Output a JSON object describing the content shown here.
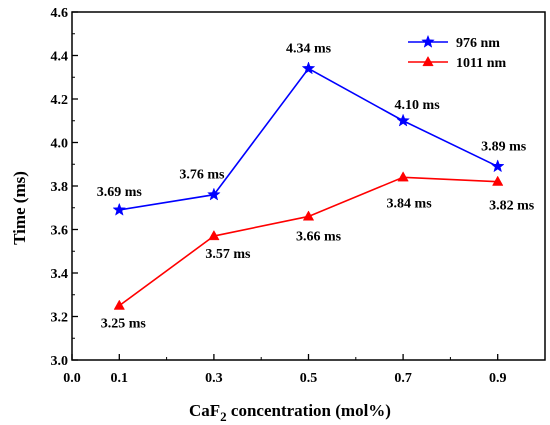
{
  "chart_data": {
    "type": "line",
    "xlabel_main": "CaF",
    "xlabel_sub": "2",
    "xlabel_rest": " concentration (mol%)",
    "ylabel": "Time (ms)",
    "xlim": [
      0.0,
      1.0
    ],
    "ylim": [
      3.0,
      4.6
    ],
    "xticks": [
      "0.0",
      "0.1",
      "0.3",
      "0.5",
      "0.7",
      "0.9"
    ],
    "xtick_values": [
      0.0,
      0.1,
      0.3,
      0.5,
      0.7,
      0.9
    ],
    "yticks": [
      "3.0",
      "3.2",
      "3.4",
      "3.6",
      "3.8",
      "4.0",
      "4.2",
      "4.4",
      "4.6"
    ],
    "ytick_values": [
      3.0,
      3.2,
      3.4,
      3.6,
      3.8,
      4.0,
      4.2,
      4.4,
      4.6
    ],
    "legend_position": "top-right",
    "grid": false,
    "x": [
      0.1,
      0.3,
      0.5,
      0.7,
      0.9
    ],
    "series": [
      {
        "name": "976 nm",
        "color": "#0000ff",
        "marker": "star",
        "values": [
          3.69,
          3.76,
          4.34,
          4.1,
          3.89
        ],
        "labels": [
          "3.69 ms",
          "3.76 ms",
          "4.34 ms",
          "4.10 ms",
          "3.89 ms"
        ]
      },
      {
        "name": "1011 nm",
        "color": "#ff0000",
        "marker": "triangle",
        "values": [
          3.25,
          3.57,
          3.66,
          3.84,
          3.82
        ],
        "labels": [
          "3.25 ms",
          "3.57 ms",
          "3.66 ms",
          "3.84 ms",
          "3.82 ms"
        ]
      }
    ]
  }
}
